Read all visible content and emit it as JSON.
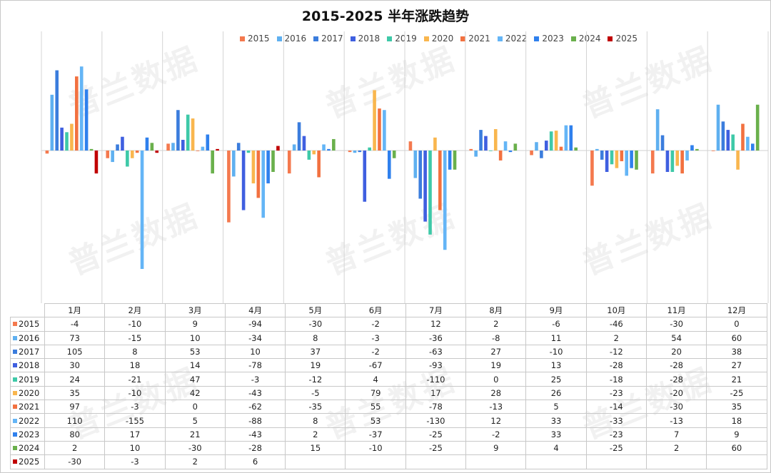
{
  "watermark_text": "普兰数据",
  "chart_data": {
    "type": "bar",
    "title": "2015-2025 半年涨跌趋势",
    "categories": [
      "1月",
      "2月",
      "3月",
      "4月",
      "5月",
      "6月",
      "7月",
      "8月",
      "9月",
      "10月",
      "11月",
      "12月"
    ],
    "ylim": [
      -190,
      130
    ],
    "legend_position": "top",
    "gridlines": "vertical",
    "series": [
      {
        "name": "2015",
        "color": "#f4794e",
        "values": [
          -4,
          -10,
          9,
          -94,
          -30,
          -2,
          12,
          2,
          -6,
          -46,
          -30,
          0
        ]
      },
      {
        "name": "2016",
        "color": "#5fb0f0",
        "values": [
          73,
          -15,
          10,
          -34,
          8,
          -3,
          -36,
          -8,
          11,
          2,
          54,
          60
        ]
      },
      {
        "name": "2017",
        "color": "#3b7ddd",
        "values": [
          105,
          8,
          53,
          10,
          37,
          -2,
          -63,
          27,
          -10,
          -12,
          20,
          38
        ]
      },
      {
        "name": "2018",
        "color": "#3f5fe0",
        "values": [
          30,
          18,
          14,
          -78,
          19,
          -67,
          -93,
          19,
          13,
          -28,
          -28,
          27
        ]
      },
      {
        "name": "2019",
        "color": "#3ec9a8",
        "values": [
          24,
          -21,
          47,
          -3,
          -12,
          4,
          -110,
          0,
          25,
          -18,
          -28,
          21
        ]
      },
      {
        "name": "2020",
        "color": "#f9b64e",
        "values": [
          35,
          -10,
          42,
          -43,
          -5,
          79,
          17,
          28,
          26,
          -23,
          -20,
          -25
        ]
      },
      {
        "name": "2021",
        "color": "#f27140",
        "values": [
          97,
          -3,
          0,
          -62,
          -35,
          55,
          -78,
          -13,
          5,
          -14,
          -30,
          35
        ]
      },
      {
        "name": "2022",
        "color": "#64b5f6",
        "values": [
          110,
          -155,
          5,
          -88,
          8,
          53,
          -130,
          12,
          33,
          -33,
          -13,
          18
        ]
      },
      {
        "name": "2023",
        "color": "#2f80ed",
        "values": [
          80,
          17,
          21,
          -43,
          2,
          -37,
          -25,
          -2,
          33,
          -23,
          7,
          9
        ]
      },
      {
        "name": "2024",
        "color": "#6ab04c",
        "values": [
          2,
          10,
          -30,
          -28,
          15,
          -10,
          -25,
          9,
          4,
          -25,
          2,
          60
        ]
      },
      {
        "name": "2025",
        "color": "#c00000",
        "values": [
          -30,
          -3,
          2,
          6,
          null,
          null,
          null,
          null,
          null,
          null,
          null,
          null
        ]
      }
    ]
  }
}
